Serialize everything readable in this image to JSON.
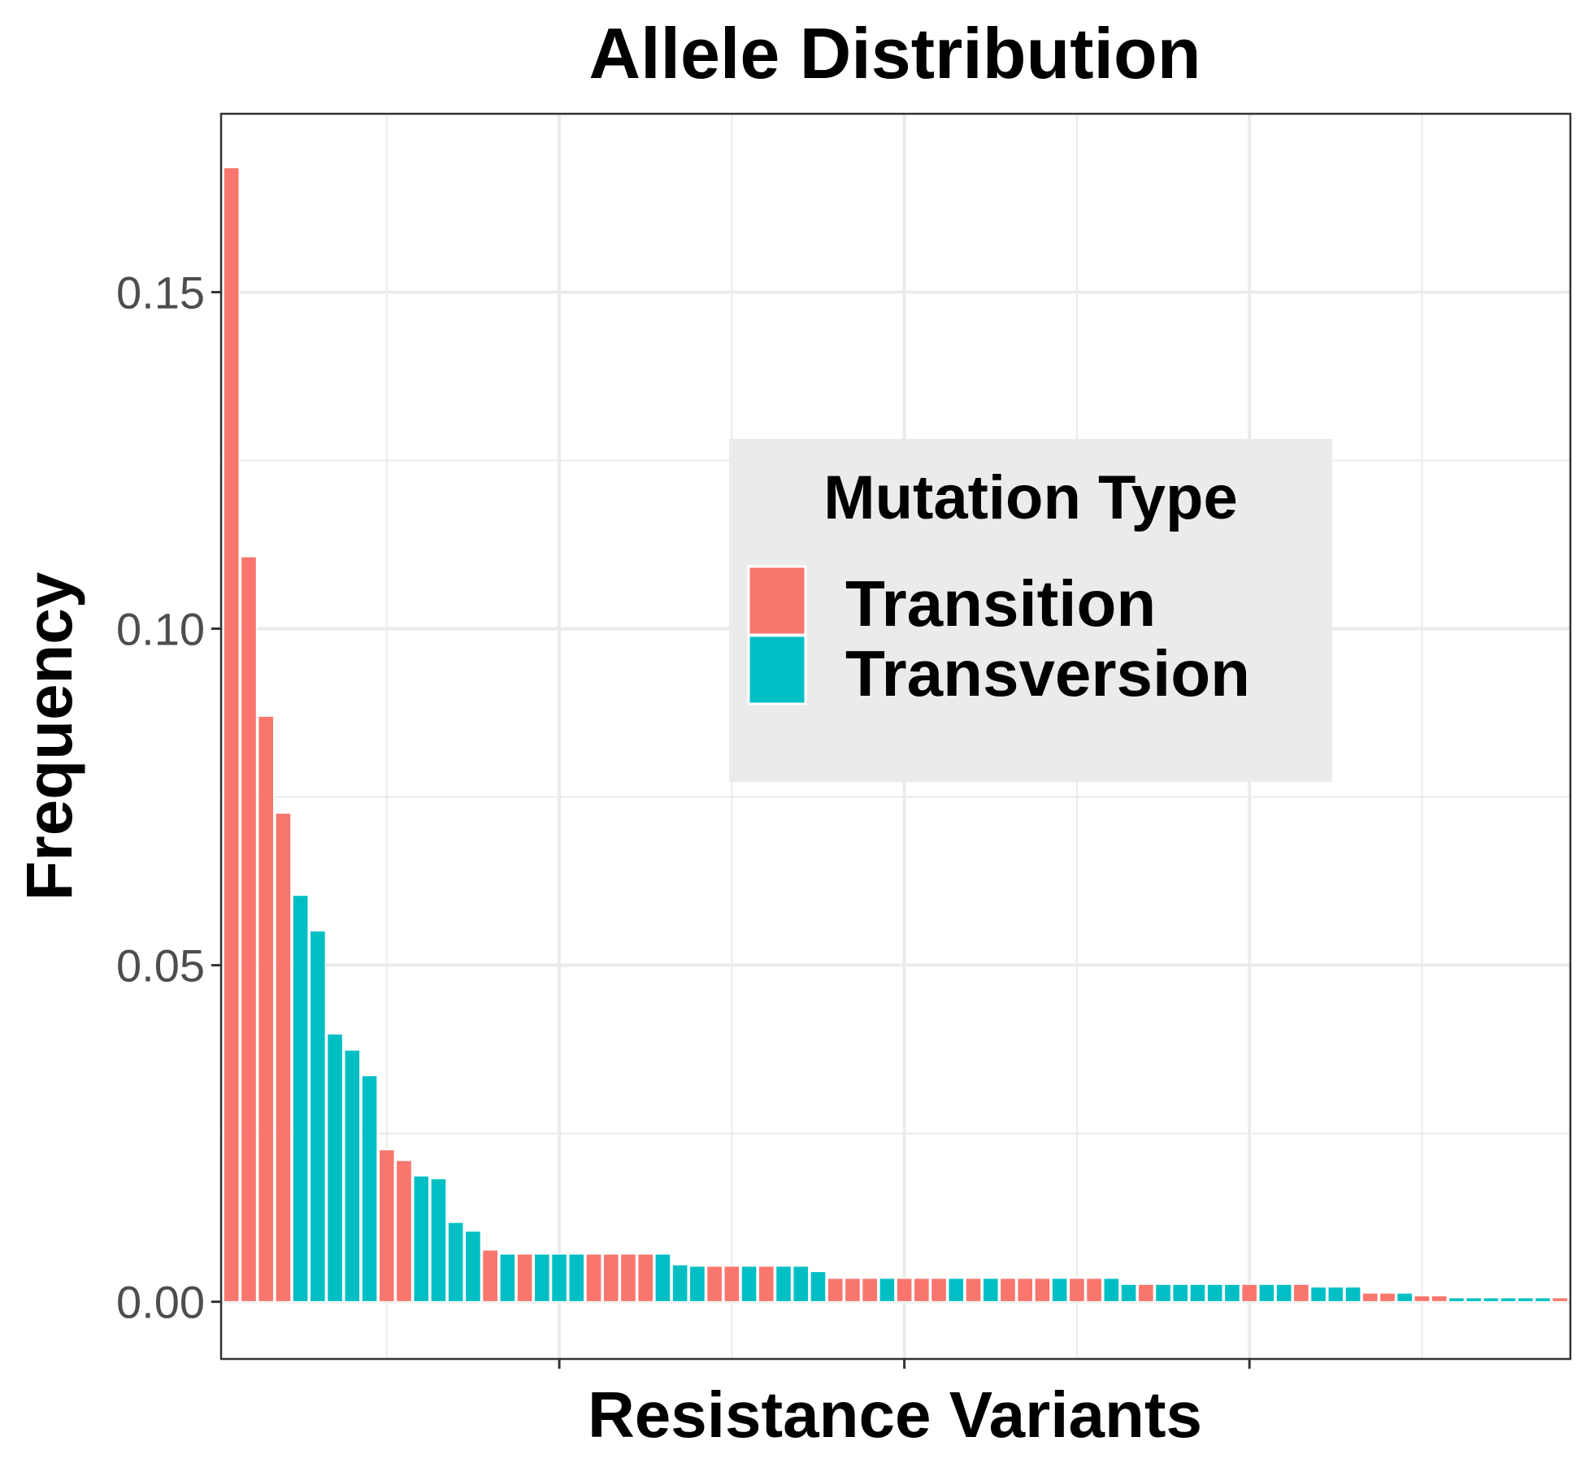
{
  "chart_data": {
    "type": "bar",
    "title": "Allele Distribution",
    "xlabel": "Resistance Variants",
    "ylabel": "Frequency",
    "ylim": [
      -0.0085,
      0.1765
    ],
    "yticks": [
      {
        "value": 0.0,
        "label": "0.00"
      },
      {
        "value": 0.05,
        "label": "0.05"
      },
      {
        "value": 0.1,
        "label": "0.10"
      },
      {
        "value": 0.15,
        "label": "0.15"
      }
    ],
    "grid": true,
    "legend": {
      "title": "Mutation Type",
      "placement": "inside-right",
      "entries": [
        {
          "key": "Transition",
          "label": "Transition",
          "color": "#F8766D"
        },
        {
          "key": "Transversion",
          "label": "Transversion",
          "color": "#00BFC4"
        }
      ]
    },
    "colors": {
      "Transition": "#F8766D",
      "Transversion": "#00BFC4"
    },
    "bars": [
      {
        "rank": 1,
        "value": 0.1685,
        "type": "Transition"
      },
      {
        "rank": 2,
        "value": 0.1107,
        "type": "Transition"
      },
      {
        "rank": 3,
        "value": 0.087,
        "type": "Transition"
      },
      {
        "rank": 4,
        "value": 0.0726,
        "type": "Transition"
      },
      {
        "rank": 5,
        "value": 0.0604,
        "type": "Transversion"
      },
      {
        "rank": 6,
        "value": 0.0551,
        "type": "Transversion"
      },
      {
        "rank": 7,
        "value": 0.0398,
        "type": "Transversion"
      },
      {
        "rank": 8,
        "value": 0.0374,
        "type": "Transversion"
      },
      {
        "rank": 9,
        "value": 0.0336,
        "type": "Transversion"
      },
      {
        "rank": 10,
        "value": 0.0226,
        "type": "Transition"
      },
      {
        "rank": 11,
        "value": 0.021,
        "type": "Transition"
      },
      {
        "rank": 12,
        "value": 0.0187,
        "type": "Transversion"
      },
      {
        "rank": 13,
        "value": 0.0183,
        "type": "Transversion"
      },
      {
        "rank": 14,
        "value": 0.0118,
        "type": "Transversion"
      },
      {
        "rank": 15,
        "value": 0.0105,
        "type": "Transversion"
      },
      {
        "rank": 16,
        "value": 0.0077,
        "type": "Transition"
      },
      {
        "rank": 17,
        "value": 0.0071,
        "type": "Transversion"
      },
      {
        "rank": 18,
        "value": 0.0071,
        "type": "Transition"
      },
      {
        "rank": 19,
        "value": 0.0071,
        "type": "Transversion"
      },
      {
        "rank": 20,
        "value": 0.0071,
        "type": "Transversion"
      },
      {
        "rank": 21,
        "value": 0.0071,
        "type": "Transversion"
      },
      {
        "rank": 22,
        "value": 0.0071,
        "type": "Transition"
      },
      {
        "rank": 23,
        "value": 0.0071,
        "type": "Transition"
      },
      {
        "rank": 24,
        "value": 0.0071,
        "type": "Transition"
      },
      {
        "rank": 25,
        "value": 0.0071,
        "type": "Transition"
      },
      {
        "rank": 26,
        "value": 0.0071,
        "type": "Transversion"
      },
      {
        "rank": 27,
        "value": 0.0055,
        "type": "Transversion"
      },
      {
        "rank": 28,
        "value": 0.0053,
        "type": "Transversion"
      },
      {
        "rank": 29,
        "value": 0.0053,
        "type": "Transition"
      },
      {
        "rank": 30,
        "value": 0.0053,
        "type": "Transition"
      },
      {
        "rank": 31,
        "value": 0.0053,
        "type": "Transversion"
      },
      {
        "rank": 32,
        "value": 0.0053,
        "type": "Transition"
      },
      {
        "rank": 33,
        "value": 0.0053,
        "type": "Transversion"
      },
      {
        "rank": 34,
        "value": 0.0053,
        "type": "Transversion"
      },
      {
        "rank": 35,
        "value": 0.0045,
        "type": "Transversion"
      },
      {
        "rank": 36,
        "value": 0.0035,
        "type": "Transition"
      },
      {
        "rank": 37,
        "value": 0.0035,
        "type": "Transition"
      },
      {
        "rank": 38,
        "value": 0.0035,
        "type": "Transition"
      },
      {
        "rank": 39,
        "value": 0.0035,
        "type": "Transversion"
      },
      {
        "rank": 40,
        "value": 0.0035,
        "type": "Transition"
      },
      {
        "rank": 41,
        "value": 0.0035,
        "type": "Transition"
      },
      {
        "rank": 42,
        "value": 0.0035,
        "type": "Transition"
      },
      {
        "rank": 43,
        "value": 0.0035,
        "type": "Transversion"
      },
      {
        "rank": 44,
        "value": 0.0035,
        "type": "Transition"
      },
      {
        "rank": 45,
        "value": 0.0035,
        "type": "Transversion"
      },
      {
        "rank": 46,
        "value": 0.0035,
        "type": "Transition"
      },
      {
        "rank": 47,
        "value": 0.0035,
        "type": "Transition"
      },
      {
        "rank": 48,
        "value": 0.0035,
        "type": "Transition"
      },
      {
        "rank": 49,
        "value": 0.0035,
        "type": "Transversion"
      },
      {
        "rank": 50,
        "value": 0.0035,
        "type": "Transition"
      },
      {
        "rank": 51,
        "value": 0.0035,
        "type": "Transition"
      },
      {
        "rank": 52,
        "value": 0.0035,
        "type": "Transversion"
      },
      {
        "rank": 53,
        "value": 0.0026,
        "type": "Transversion"
      },
      {
        "rank": 54,
        "value": 0.0026,
        "type": "Transition"
      },
      {
        "rank": 55,
        "value": 0.0026,
        "type": "Transversion"
      },
      {
        "rank": 56,
        "value": 0.0026,
        "type": "Transversion"
      },
      {
        "rank": 57,
        "value": 0.0026,
        "type": "Transversion"
      },
      {
        "rank": 58,
        "value": 0.0026,
        "type": "Transversion"
      },
      {
        "rank": 59,
        "value": 0.0026,
        "type": "Transversion"
      },
      {
        "rank": 60,
        "value": 0.0026,
        "type": "Transition"
      },
      {
        "rank": 61,
        "value": 0.0026,
        "type": "Transversion"
      },
      {
        "rank": 62,
        "value": 0.0026,
        "type": "Transversion"
      },
      {
        "rank": 63,
        "value": 0.0026,
        "type": "Transition"
      },
      {
        "rank": 64,
        "value": 0.0022,
        "type": "Transversion"
      },
      {
        "rank": 65,
        "value": 0.0022,
        "type": "Transversion"
      },
      {
        "rank": 66,
        "value": 0.0022,
        "type": "Transversion"
      },
      {
        "rank": 67,
        "value": 0.0013,
        "type": "Transition"
      },
      {
        "rank": 68,
        "value": 0.0013,
        "type": "Transition"
      },
      {
        "rank": 69,
        "value": 0.0013,
        "type": "Transversion"
      },
      {
        "rank": 70,
        "value": 0.0009,
        "type": "Transition"
      },
      {
        "rank": 71,
        "value": 0.0009,
        "type": "Transition"
      },
      {
        "rank": 72,
        "value": 0.0006,
        "type": "Transversion"
      },
      {
        "rank": 73,
        "value": 0.0006,
        "type": "Transversion"
      },
      {
        "rank": 74,
        "value": 0.0006,
        "type": "Transversion"
      },
      {
        "rank": 75,
        "value": 0.0006,
        "type": "Transversion"
      },
      {
        "rank": 76,
        "value": 0.0006,
        "type": "Transversion"
      },
      {
        "rank": 77,
        "value": 0.0006,
        "type": "Transversion"
      },
      {
        "rank": 78,
        "value": 0.0006,
        "type": "Transition"
      }
    ]
  }
}
